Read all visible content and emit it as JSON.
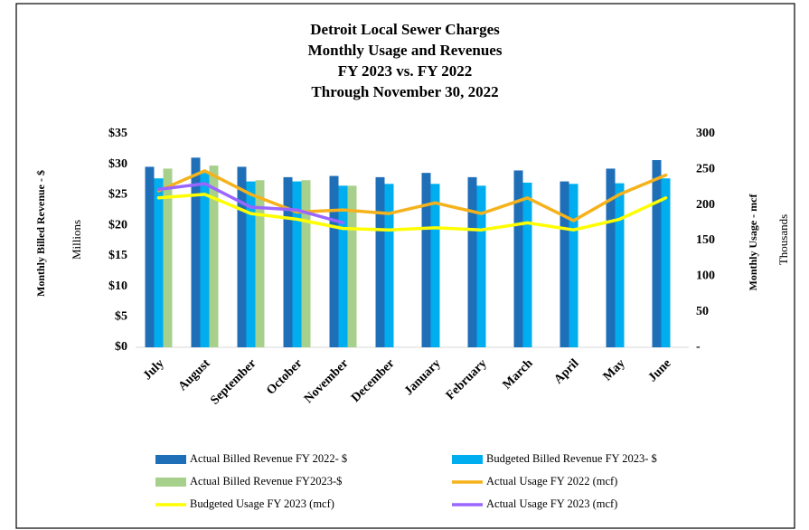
{
  "chart_data": {
    "type": "bar_line",
    "title": [
      "Detroit Local Sewer Charges",
      "Monthly Usage and Revenues",
      "FY 2023 vs. FY 2022",
      "Through November 30, 2022"
    ],
    "y_label": "Monthly Billed Revenue - $",
    "y_unit_label": "Millions",
    "y2_label": "Monthly Usage - mcf",
    "y2_unit_label": "Thousands",
    "categories": [
      "July",
      "August",
      "September",
      "October",
      "November",
      "December",
      "January",
      "February",
      "March",
      "April",
      "May",
      "June"
    ],
    "series": [
      {
        "name": "Actual Billed Revenue FY 2022- $",
        "kind": "bar",
        "color": "#1f6fb8",
        "values": [
          29.6,
          31.1,
          29.6,
          27.9,
          28.1,
          27.9,
          28.6,
          27.9,
          29.0,
          27.2,
          29.3,
          30.7
        ]
      },
      {
        "name": "Budgeted Billed Revenue FY 2023- $",
        "kind": "bar",
        "color": "#00aeef",
        "values": [
          27.7,
          28.6,
          27.2,
          27.2,
          26.5,
          26.8,
          26.8,
          26.5,
          27.0,
          26.8,
          26.9,
          27.7
        ]
      },
      {
        "name": "Actual Billed Revenue FY2023-$",
        "kind": "bar",
        "color": "#a8d08d",
        "values": [
          29.3,
          29.8,
          27.4,
          27.4,
          26.5,
          null,
          null,
          null,
          null,
          null,
          null,
          null
        ]
      },
      {
        "name": "Actual Usage FY 2022 (mcf)",
        "kind": "line",
        "axis": "y2",
        "color": "#f5b21b",
        "values": [
          220,
          248,
          215,
          190,
          193,
          188,
          203,
          188,
          210,
          178,
          215,
          242
        ]
      },
      {
        "name": "Budgeted Usage FY 2023 (mcf)",
        "kind": "line",
        "axis": "y2",
        "color": "#ffff00",
        "values": [
          210,
          215,
          188,
          180,
          167,
          165,
          168,
          165,
          175,
          165,
          180,
          210
        ]
      },
      {
        "name": "Actual Usage FY 2023 (mcf)",
        "kind": "line",
        "axis": "y2",
        "color": "#9966ff",
        "values": [
          222,
          230,
          197,
          193,
          175,
          null,
          null,
          null,
          null,
          null,
          null,
          null
        ]
      }
    ],
    "ylim": [
      0,
      35
    ],
    "yticks": [
      {
        "value": 0,
        "label": "$0"
      },
      {
        "value": 5,
        "label": "$5"
      },
      {
        "value": 10,
        "label": "$10"
      },
      {
        "value": 15,
        "label": "$15"
      },
      {
        "value": 20,
        "label": "$20"
      },
      {
        "value": 25,
        "label": "$25"
      },
      {
        "value": 30,
        "label": "$30"
      },
      {
        "value": 35,
        "label": "$35"
      }
    ],
    "y2lim": [
      0,
      300
    ],
    "y2ticks": [
      {
        "value": 0,
        "label": "-"
      },
      50,
      100,
      150,
      200,
      250,
      300
    ],
    "grid": false,
    "legend": "bottom"
  }
}
